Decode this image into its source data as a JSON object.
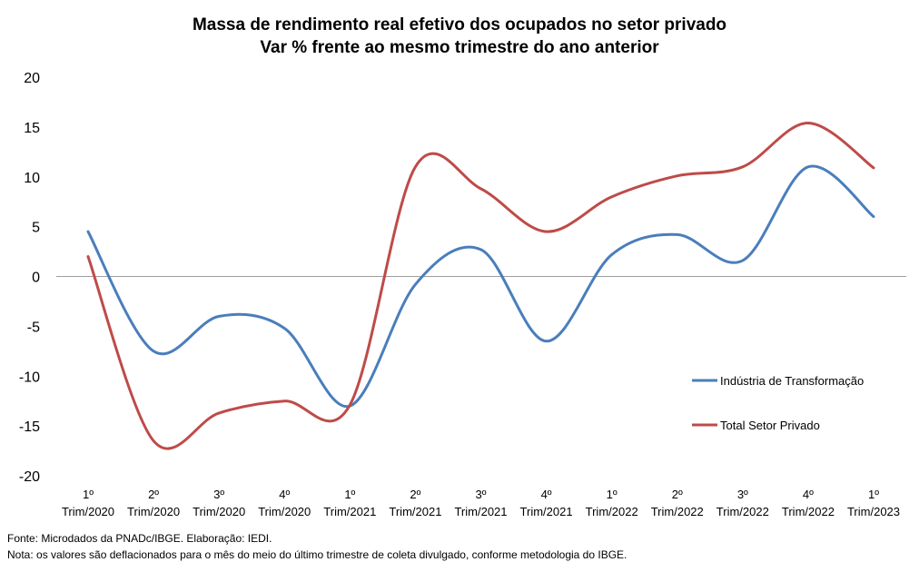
{
  "chart_data": {
    "type": "line",
    "title": [
      "Massa de rendimento real efetivo dos ocupados no setor privado",
      "Var % frente ao mesmo trimestre do ano anterior"
    ],
    "categories": [
      [
        "1º",
        "Trim/2020"
      ],
      [
        "2º",
        "Trim/2020"
      ],
      [
        "3º",
        "Trim/2020"
      ],
      [
        "4º",
        "Trim/2020"
      ],
      [
        "1º",
        "Trim/2021"
      ],
      [
        "2º",
        "Trim/2021"
      ],
      [
        "3º",
        "Trim/2021"
      ],
      [
        "4º",
        "Trim/2021"
      ],
      [
        "1º",
        "Trim/2022"
      ],
      [
        "2º",
        "Trim/2022"
      ],
      [
        "3º",
        "Trim/2022"
      ],
      [
        "4º",
        "Trim/2022"
      ],
      [
        "1º",
        "Trim/2023"
      ]
    ],
    "ylim": [
      -20,
      20
    ],
    "yticks": [
      "20",
      "15",
      "10",
      "5",
      "0",
      "-5",
      "-10",
      "-15",
      "-20"
    ],
    "grid": false,
    "legend_position": "right",
    "series": [
      {
        "name": "Indústria de Transformação",
        "color": "#4a7ebb",
        "values": [
          4.5,
          -7.5,
          -4.0,
          -5.2,
          -13.0,
          -0.8,
          2.7,
          -6.5,
          2.2,
          4.2,
          1.6,
          11.0,
          6.0
        ]
      },
      {
        "name": "Total Setor Privado",
        "color": "#be4b48",
        "values": [
          2.0,
          -16.5,
          -13.7,
          -12.5,
          -12.9,
          11.0,
          8.8,
          4.5,
          8.0,
          10.1,
          11.0,
          15.4,
          10.9
        ]
      }
    ]
  },
  "footer": {
    "source": "Fonte: Microdados da PNADc/IBGE. Elaboração: IEDI.",
    "note": "Nota: os valores são deflacionados para o mês do meio do último trimestre de coleta divulgado, conforme metodologia do IBGE."
  }
}
